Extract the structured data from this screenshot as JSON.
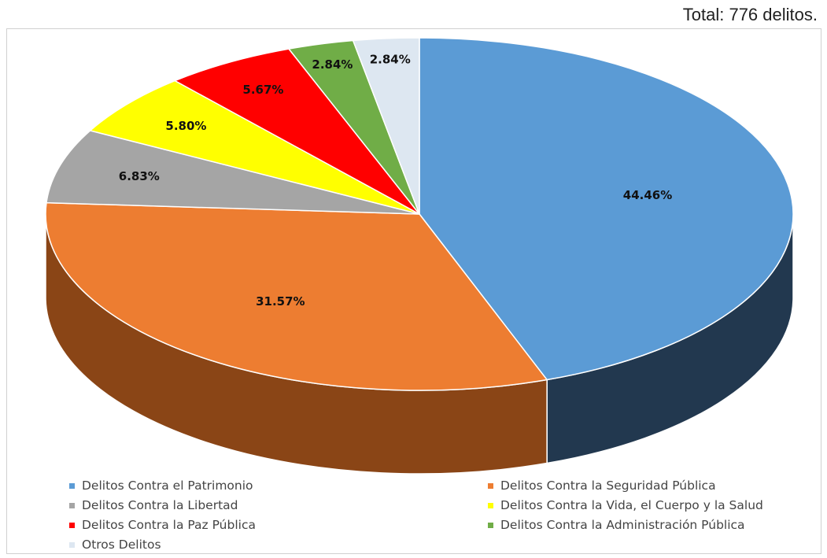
{
  "total_label": "Total: 776 delitos.",
  "chart_data": {
    "type": "pie",
    "title": "",
    "slices": [
      {
        "label": "Delitos Contra el Patrimonio",
        "value": 44.46,
        "value_label": "44.46%",
        "color": "#5b9bd5",
        "side_color": "#22384f"
      },
      {
        "label": "Delitos Contra la Seguridad Pública",
        "value": 31.57,
        "value_label": "31.57%",
        "color": "#ed7d31",
        "side_color": "#8a4516"
      },
      {
        "label": "Delitos Contra la Libertad",
        "value": 6.83,
        "value_label": "6.83%",
        "color": "#a5a5a5",
        "side_color": "#6e6e6e"
      },
      {
        "label": "Delitos Contra la Vida, el Cuerpo y la Salud",
        "value": 5.8,
        "value_label": "5.80%",
        "color": "#ffff00",
        "side_color": "#aaaa00"
      },
      {
        "label": "Delitos Contra la Paz Pública",
        "value": 5.67,
        "value_label": "5.67%",
        "color": "#ff0000",
        "side_color": "#990000"
      },
      {
        "label": "Delitos Contra la Administración Pública",
        "value": 2.84,
        "value_label": "2.84%",
        "color": "#70ad47",
        "side_color": "#3e6a24"
      },
      {
        "label": "Otros Delitos",
        "value": 2.84,
        "value_label": "2.84%",
        "color": "#dde7f1",
        "side_color": "#9aa8b5"
      }
    ],
    "legend_position": "bottom"
  }
}
